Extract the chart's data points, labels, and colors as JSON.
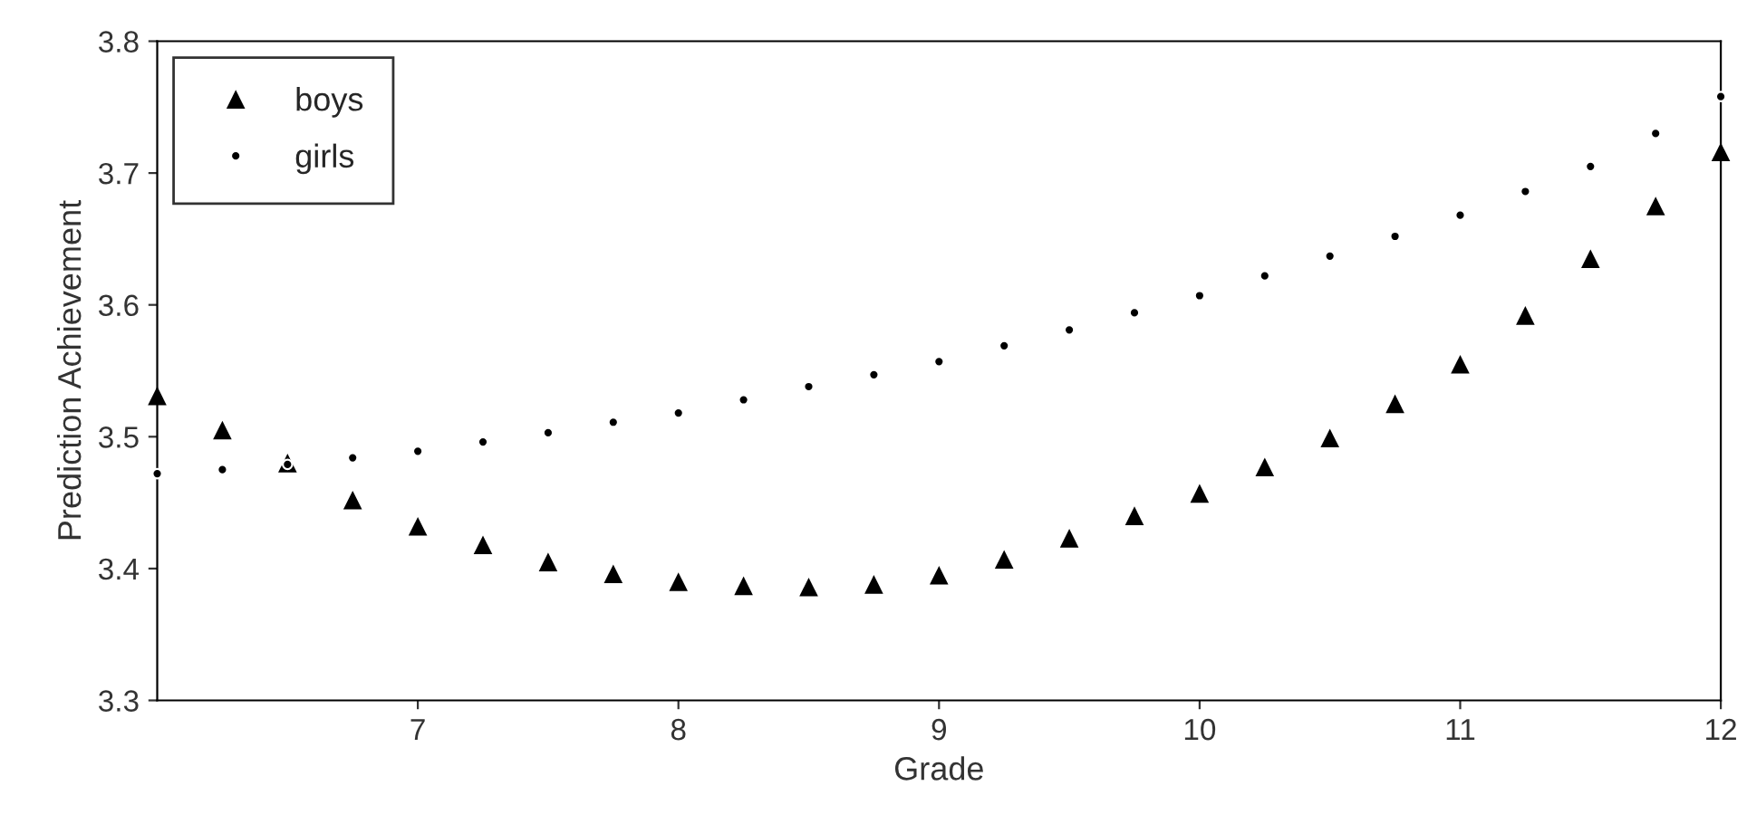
{
  "chart_data": {
    "type": "scatter",
    "xlabel": "Grade",
    "ylabel": "Prediction Achievement",
    "xlim": [
      6,
      12
    ],
    "xticks": [
      7,
      8,
      9,
      10,
      11,
      12
    ],
    "ylim": [
      3.3,
      3.8
    ],
    "yticks": [
      3.3,
      3.4,
      3.5,
      3.6,
      3.7,
      3.8
    ],
    "grid": false,
    "legend": "top left",
    "x": [
      6,
      6.25,
      6.5,
      6.75,
      7,
      7.25,
      7.5,
      7.75,
      8,
      8.25,
      8.5,
      8.75,
      9,
      9.25,
      9.5,
      9.75,
      10,
      10.25,
      10.5,
      10.75,
      11,
      11.25,
      11.5,
      11.75,
      12
    ],
    "series": [
      {
        "name": "boys",
        "color": "#000000",
        "marker": "triangle",
        "values": [
          3.531,
          3.505,
          3.48,
          3.452,
          3.432,
          3.418,
          3.405,
          3.396,
          3.39,
          3.387,
          3.386,
          3.388,
          3.395,
          3.407,
          3.423,
          3.44,
          3.457,
          3.477,
          3.499,
          3.525,
          3.555,
          3.592,
          3.635,
          3.675,
          3.716
        ]
      },
      {
        "name": "girls",
        "color": "#000000",
        "marker": "circle",
        "values": [
          3.472,
          3.475,
          3.479,
          3.484,
          3.489,
          3.496,
          3.503,
          3.511,
          3.518,
          3.528,
          3.538,
          3.547,
          3.557,
          3.569,
          3.581,
          3.594,
          3.607,
          3.622,
          3.637,
          3.652,
          3.668,
          3.686,
          3.705,
          3.73,
          3.758
        ]
      }
    ]
  }
}
